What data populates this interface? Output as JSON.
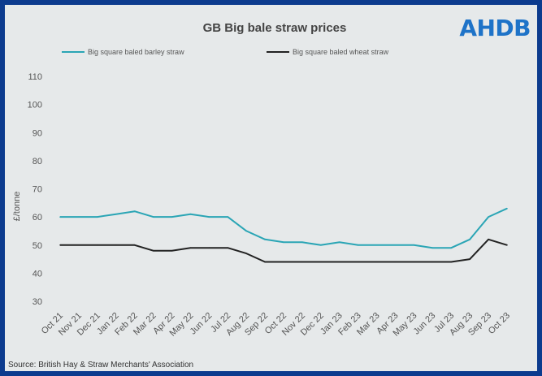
{
  "brand": {
    "logo": "AHDB"
  },
  "footer": {
    "source": "Source: British Hay & Straw Merchants' Association"
  },
  "chart_data": {
    "type": "line",
    "title": "GB Big bale straw prices",
    "ylabel": "£/tonne",
    "xlabel": "",
    "ylim": [
      30,
      110
    ],
    "yticks": [
      30,
      40,
      50,
      60,
      70,
      80,
      90,
      100,
      110
    ],
    "grid": false,
    "legend_position": "top",
    "categories": [
      "Oct 21",
      "Nov 21",
      "Dec 21",
      "Jan 22",
      "Feb 22",
      "Mar 22",
      "Apr 22",
      "May 22",
      "Jun 22",
      "Jul 22",
      "Aug 22",
      "Sep 22",
      "Oct 22",
      "Nov 22",
      "Dec 22",
      "Jan 23",
      "Feb 23",
      "Mar 23",
      "Apr 23",
      "May 23",
      "Jun 23",
      "Jul 23",
      "Aug 23",
      "Sep 23",
      "Oct 23"
    ],
    "series": [
      {
        "name": "Big square baled barley straw",
        "color": "#2aa5b5",
        "values": [
          60,
          60,
          60,
          61,
          62,
          60,
          60,
          61,
          60,
          60,
          55,
          52,
          51,
          51,
          50,
          51,
          50,
          50,
          50,
          50,
          49,
          49,
          52,
          60,
          63
        ]
      },
      {
        "name": "Big square baled wheat straw",
        "color": "#222222",
        "values": [
          50,
          50,
          50,
          50,
          50,
          48,
          48,
          49,
          49,
          49,
          47,
          44,
          44,
          44,
          44,
          44,
          44,
          44,
          44,
          44,
          44,
          44,
          45,
          52,
          50
        ]
      }
    ]
  }
}
